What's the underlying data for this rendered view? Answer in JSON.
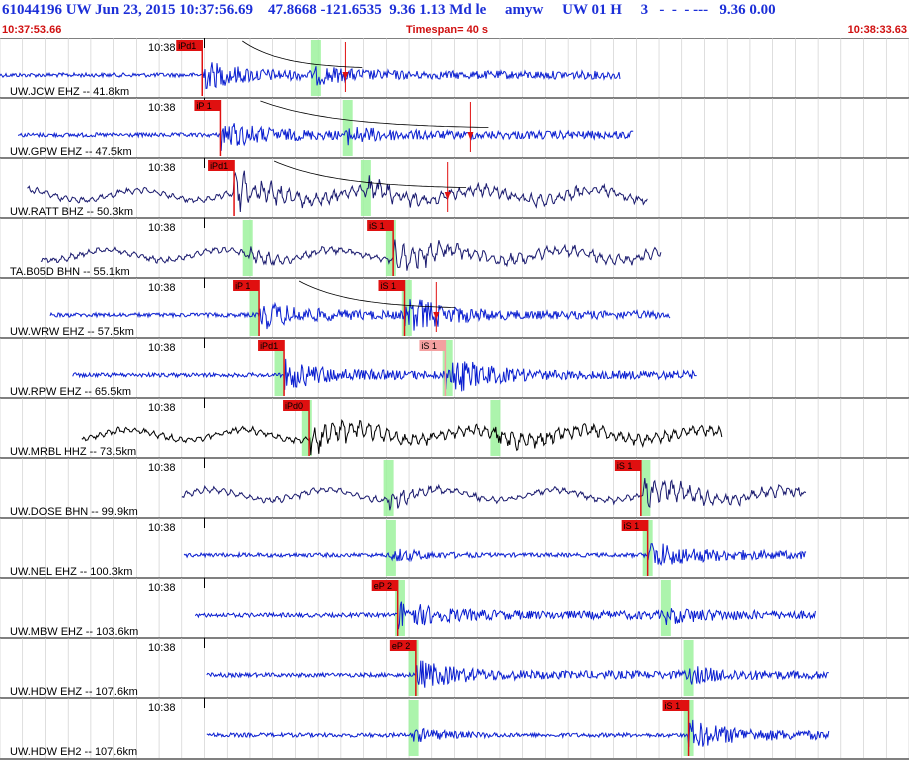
{
  "header": {
    "title": "61044196 UW Jun 23, 2015 10:37:56.69    47.8668 -121.6535  9.36 1.13 Md le     amyw     UW 01 H     3   -  -  - ---   9.36 0.00",
    "start_time": "10:37:53.66",
    "timespan": "Timespan=  40 s",
    "end_time": "10:38:33.63"
  },
  "chart_data": {
    "type": "line",
    "title": "",
    "xlabel": "",
    "ylabel": "",
    "time_start_s": 0,
    "time_end_s": 40,
    "grid": "vertical, 1 s spacing",
    "tick_label": "10:38",
    "series": [
      {
        "name": "UW.JCW EHZ -- 41.8km",
        "color": "#0a1ed0",
        "trace_start_s": 0.0,
        "trace_end_s": 27.3,
        "picks": [
          {
            "label": "iPd1",
            "t": 8.9,
            "color": "#e01010"
          }
        ],
        "theoretical_s": [
          13.9
        ],
        "amp_marker_s": 15.2
      },
      {
        "name": "UW.GPW EHZ -- 47.5km",
        "color": "#0a1ed0",
        "trace_start_s": 0.8,
        "trace_end_s": 27.9,
        "picks": [
          {
            "label": "iP 1",
            "t": 9.7,
            "color": "#e01010"
          }
        ],
        "theoretical_s": [
          15.3
        ],
        "amp_marker_s": 20.7
      },
      {
        "name": "UW.RATT BHZ -- 50.3km",
        "color": "#1a1a6e",
        "trace_start_s": 1.2,
        "trace_end_s": 28.5,
        "picks": [
          {
            "label": "iPd1",
            "t": 10.3,
            "color": "#e01010"
          }
        ],
        "theoretical_s": [
          16.1
        ],
        "amp_marker_s": 19.7
      },
      {
        "name": "TA.B05D BHN -- 55.1km",
        "color": "#1a1a6e",
        "trace_start_s": 1.8,
        "trace_end_s": 29.1,
        "picks": [
          {
            "label": "iS 1",
            "t": 17.3,
            "color": "#e01010"
          }
        ],
        "theoretical_s": [
          10.9,
          17.2
        ]
      },
      {
        "name": "UW.WRW EHZ -- 57.5km",
        "color": "#0a1ed0",
        "trace_start_s": 2.2,
        "trace_end_s": 29.5,
        "picks": [
          {
            "label": "iP 1",
            "t": 11.4,
            "color": "#e01010"
          },
          {
            "label": "iS 1",
            "t": 17.8,
            "color": "#e01010"
          }
        ],
        "theoretical_s": [
          11.2,
          17.9
        ],
        "amp_marker_s": 19.2
      },
      {
        "name": "UW.RPW EHZ -- 65.5km",
        "color": "#0a1ed0",
        "trace_start_s": 3.2,
        "trace_end_s": 30.7,
        "picks": [
          {
            "label": "iPd1",
            "t": 12.5,
            "color": "#e01010"
          },
          {
            "label": "iS 1",
            "t": 19.6,
            "color": "#f4a0a0"
          }
        ],
        "theoretical_s": [
          12.3,
          19.7
        ]
      },
      {
        "name": "UW.MRBL HHZ -- 73.5km",
        "color": "#000000",
        "trace_start_s": 3.6,
        "trace_end_s": 31.8,
        "picks": [
          {
            "label": "iPd0",
            "t": 13.6,
            "color": "#e01010"
          }
        ],
        "theoretical_s": [
          13.5,
          21.8
        ]
      },
      {
        "name": "UW.DOSE BHN -- 99.9km",
        "color": "#1a1a6e",
        "trace_start_s": 8.0,
        "trace_end_s": 35.5,
        "picks": [
          {
            "label": "iS 1",
            "t": 28.2,
            "color": "#e01010"
          }
        ],
        "theoretical_s": [
          17.1,
          28.4
        ]
      },
      {
        "name": "UW.NEL EHZ -- 100.3km",
        "color": "#0a1ed0",
        "trace_start_s": 8.1,
        "trace_end_s": 35.5,
        "picks": [
          {
            "label": "iS 1",
            "t": 28.5,
            "color": "#e01010"
          }
        ],
        "theoretical_s": [
          17.2,
          28.5
        ]
      },
      {
        "name": "UW.MBW EHZ -- 103.6km",
        "color": "#0a1ed0",
        "trace_start_s": 8.6,
        "trace_end_s": 35.9,
        "picks": [
          {
            "label": "eP 2",
            "t": 17.5,
            "color": "#e01010"
          }
        ],
        "theoretical_s": [
          17.6,
          29.3
        ]
      },
      {
        "name": "UW.HDW EHZ -- 107.6km",
        "color": "#0a1ed0",
        "trace_start_s": 9.1,
        "trace_end_s": 36.5,
        "picks": [
          {
            "label": "eP 2",
            "t": 18.3,
            "color": "#e01010"
          }
        ],
        "theoretical_s": [
          18.2,
          30.3
        ]
      },
      {
        "name": "UW.HDW EH2 -- 107.6km",
        "color": "#0a1ed0",
        "trace_start_s": 9.1,
        "trace_end_s": 36.5,
        "picks": [
          {
            "label": "iS 1",
            "t": 30.3,
            "color": "#e01010"
          }
        ],
        "theoretical_s": [
          18.2,
          30.3
        ]
      }
    ]
  }
}
